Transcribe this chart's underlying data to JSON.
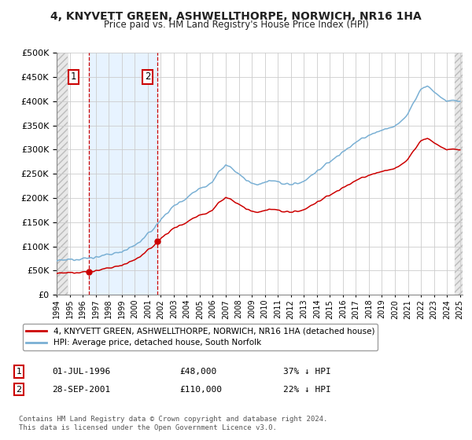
{
  "title1": "4, KNYVETT GREEN, ASHWELLTHORPE, NORWICH, NR16 1HA",
  "title2": "Price paid vs. HM Land Registry's House Price Index (HPI)",
  "legend_red": "4, KNYVETT GREEN, ASHWELLTHORPE, NORWICH, NR16 1HA (detached house)",
  "legend_blue": "HPI: Average price, detached house, South Norfolk",
  "annotation1_date": "01-JUL-1996",
  "annotation1_price": "£48,000",
  "annotation1_hpi": "37% ↓ HPI",
  "annotation2_date": "28-SEP-2001",
  "annotation2_price": "£110,000",
  "annotation2_hpi": "22% ↓ HPI",
  "footer": "Contains HM Land Registry data © Crown copyright and database right 2024.\nThis data is licensed under the Open Government Licence v3.0.",
  "ylim": [
    0,
    500000
  ],
  "yticks": [
    0,
    50000,
    100000,
    150000,
    200000,
    250000,
    300000,
    350000,
    400000,
    450000,
    500000
  ],
  "purchase1_year": 1996.5,
  "purchase1_price": 48000,
  "purchase2_year": 2001.75,
  "purchase2_price": 110000,
  "red_color": "#cc0000",
  "blue_color": "#7ab0d4",
  "background_color": "#ffffff",
  "grid_color": "#cccccc",
  "hatch_bg": "#e8e8e8",
  "shade_color": "#ddeeff",
  "xstart": 1994,
  "xend": 2025
}
